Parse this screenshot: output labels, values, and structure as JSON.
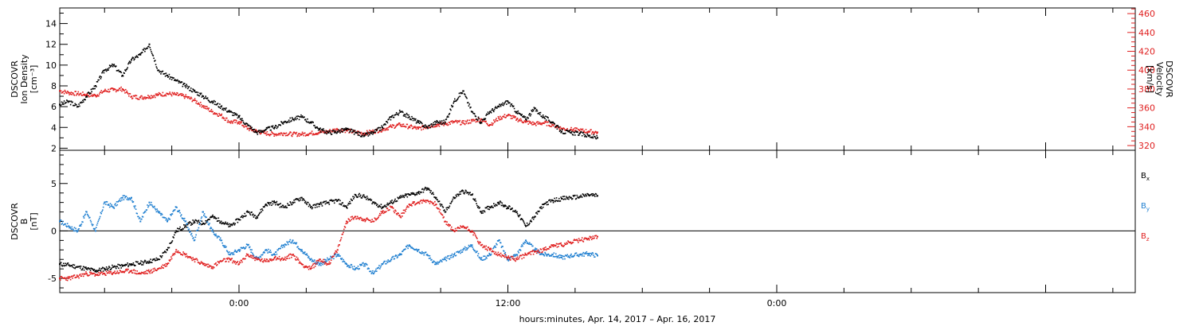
{
  "colors": {
    "black": "#000000",
    "red": "#e02020",
    "blue": "#1f7fd0"
  },
  "chart_data": [
    {
      "type": "scatter",
      "title": "",
      "ylabel_lines": [
        "DSCOVR",
        "Ion Density",
        "[cm⁻³]"
      ],
      "ylabel_right_lines": [
        "DSCOVR",
        "Velocity",
        "[km/s]"
      ],
      "ylim": [
        1.8,
        15.5
      ],
      "ylim_right": [
        315,
        466
      ],
      "yticks": [
        2,
        4,
        6,
        8,
        10,
        12,
        14
      ],
      "yticks_right": [
        320,
        340,
        360,
        380,
        400,
        420,
        440,
        460
      ],
      "x_unit": "hours since 2017-04-14 00:00",
      "xlim": [
        16,
        64
      ],
      "series": [
        {
          "color": "#000000",
          "axis": "left",
          "x": [
            16.0,
            16.4,
            16.8,
            17.2,
            17.6,
            18.0,
            18.4,
            18.8,
            19.2,
            19.6,
            20.0,
            20.4,
            20.8,
            21.2,
            21.6,
            22.0,
            22.4,
            22.8,
            23.2,
            23.6,
            24.0,
            24.4,
            24.8,
            25.2,
            25.6,
            26.0,
            26.4,
            26.8,
            27.2,
            27.6,
            28.0,
            28.4,
            28.8,
            29.2,
            29.6,
            30.0,
            30.4,
            30.8,
            31.2,
            31.6,
            32.0,
            32.4,
            32.8,
            33.2,
            33.6,
            34.0,
            34.4,
            34.8,
            35.2,
            35.6,
            36.0,
            36.4,
            36.8,
            37.2,
            37.6,
            38.0,
            38.4,
            38.8,
            39.2,
            39.6,
            40.0
          ],
          "y": [
            6.2,
            6.5,
            6.0,
            7.0,
            8.0,
            9.5,
            10.0,
            9.0,
            10.5,
            11.0,
            12.0,
            9.5,
            9.0,
            8.5,
            8.0,
            7.5,
            7.0,
            6.5,
            6.0,
            5.5,
            5.0,
            4.2,
            3.5,
            3.8,
            4.0,
            4.5,
            4.8,
            5.0,
            4.5,
            3.8,
            3.5,
            3.6,
            3.8,
            3.5,
            3.2,
            3.5,
            4.0,
            5.0,
            5.5,
            5.0,
            4.5,
            4.0,
            4.5,
            4.5,
            6.5,
            7.5,
            5.5,
            4.5,
            5.5,
            6.0,
            6.5,
            5.5,
            4.8,
            5.8,
            5.0,
            4.5,
            3.6,
            3.5,
            3.4,
            3.2,
            3.0
          ]
        },
        {
          "color": "#e02020",
          "axis": "right",
          "x": [
            16.0,
            16.4,
            16.8,
            17.2,
            17.6,
            18.0,
            18.4,
            18.8,
            19.2,
            19.6,
            20.0,
            20.4,
            20.8,
            21.2,
            21.6,
            22.0,
            22.4,
            22.8,
            23.2,
            23.6,
            24.0,
            24.4,
            24.8,
            25.2,
            25.6,
            26.0,
            26.4,
            26.8,
            27.2,
            27.6,
            28.0,
            28.4,
            28.8,
            29.2,
            29.6,
            30.0,
            30.4,
            30.8,
            31.2,
            31.6,
            32.0,
            32.4,
            32.8,
            33.2,
            33.6,
            34.0,
            34.4,
            34.8,
            35.2,
            35.6,
            36.0,
            36.4,
            36.8,
            37.2,
            37.6,
            38.0,
            38.4,
            38.8,
            39.2,
            39.6,
            40.0
          ],
          "y": [
            378,
            376,
            375,
            374,
            373,
            378,
            379,
            380,
            372,
            371,
            372,
            374,
            375,
            374,
            372,
            368,
            362,
            356,
            352,
            345,
            345,
            338,
            335,
            333,
            332,
            333,
            332,
            332,
            333,
            334,
            335,
            337,
            336,
            334,
            333,
            335,
            337,
            340,
            342,
            340,
            338,
            340,
            342,
            343,
            345,
            344,
            346,
            348,
            342,
            349,
            352,
            348,
            345,
            343,
            344,
            342,
            338,
            337,
            336,
            335,
            334
          ]
        }
      ]
    },
    {
      "type": "scatter",
      "title": "",
      "ylabel_lines": [
        "DSCOVR",
        "B",
        "[nT]"
      ],
      "ylim": [
        -6.5,
        8.5
      ],
      "yticks": [
        -5,
        0,
        5
      ],
      "x_unit": "hours since 2017-04-14 00:00",
      "xlim": [
        16,
        64
      ],
      "zero_line": true,
      "legend": [
        "Bx",
        "By",
        "Bz"
      ],
      "series": [
        {
          "name": "Bx",
          "color": "#000000",
          "x": [
            16.0,
            16.4,
            16.8,
            17.2,
            17.6,
            18.0,
            18.4,
            18.8,
            19.2,
            19.6,
            20.0,
            20.4,
            20.8,
            21.2,
            21.6,
            22.0,
            22.4,
            22.8,
            23.2,
            23.6,
            24.0,
            24.4,
            24.8,
            25.2,
            25.6,
            26.0,
            26.4,
            26.8,
            27.2,
            27.6,
            28.0,
            28.4,
            28.8,
            29.2,
            29.6,
            30.0,
            30.4,
            30.8,
            31.2,
            31.6,
            32.0,
            32.4,
            32.8,
            33.2,
            33.6,
            34.0,
            34.4,
            34.8,
            35.2,
            35.6,
            36.0,
            36.4,
            36.8,
            37.2,
            37.6,
            38.0,
            38.4,
            38.8,
            39.2,
            39.6,
            40.0
          ],
          "y": [
            -3.5,
            -3.6,
            -3.8,
            -4.0,
            -4.2,
            -4.0,
            -3.8,
            -3.7,
            -3.5,
            -3.4,
            -3.2,
            -3.0,
            -2.0,
            0.0,
            0.5,
            1.0,
            0.8,
            1.5,
            1.0,
            0.5,
            1.2,
            2.0,
            1.5,
            2.8,
            3.0,
            2.5,
            3.0,
            3.5,
            2.5,
            2.8,
            3.0,
            3.2,
            2.5,
            3.8,
            3.6,
            3.0,
            2.5,
            3.0,
            3.5,
            3.8,
            4.0,
            4.5,
            3.5,
            2.0,
            3.5,
            4.2,
            3.8,
            2.0,
            2.5,
            3.0,
            2.5,
            2.0,
            0.5,
            1.5,
            2.8,
            3.2,
            3.4,
            3.5,
            3.6,
            3.8,
            3.7
          ]
        },
        {
          "name": "By",
          "color": "#1f7fd0",
          "x": [
            16.0,
            16.4,
            16.8,
            17.2,
            17.6,
            18.0,
            18.4,
            18.8,
            19.2,
            19.6,
            20.0,
            20.4,
            20.8,
            21.2,
            21.6,
            22.0,
            22.4,
            22.8,
            23.2,
            23.6,
            24.0,
            24.4,
            24.8,
            25.2,
            25.6,
            26.0,
            26.4,
            26.8,
            27.2,
            27.6,
            28.0,
            28.4,
            28.8,
            29.2,
            29.6,
            30.0,
            30.4,
            30.8,
            31.2,
            31.6,
            32.0,
            32.4,
            32.8,
            33.2,
            33.6,
            34.0,
            34.4,
            34.8,
            35.2,
            35.6,
            36.0,
            36.4,
            36.8,
            37.2,
            37.6,
            38.0,
            38.4,
            38.8,
            39.2,
            39.6,
            40.0
          ],
          "y": [
            1.0,
            0.5,
            0.0,
            2.0,
            0.0,
            3.0,
            2.5,
            3.5,
            3.5,
            1.0,
            3.0,
            2.0,
            1.0,
            2.5,
            1.0,
            -1.0,
            2.0,
            0.0,
            -1.0,
            -2.5,
            -2.0,
            -1.5,
            -3.0,
            -2.0,
            -2.5,
            -1.5,
            -1.0,
            -2.0,
            -3.0,
            -3.5,
            -3.0,
            -2.5,
            -3.5,
            -4.0,
            -3.5,
            -4.5,
            -3.5,
            -3.0,
            -2.5,
            -1.5,
            -2.0,
            -2.5,
            -3.5,
            -3.0,
            -2.5,
            -2.0,
            -1.5,
            -3.0,
            -2.5,
            -1.0,
            -3.0,
            -2.5,
            -1.0,
            -2.0,
            -2.5,
            -2.5,
            -2.8,
            -2.6,
            -2.5,
            -2.4,
            -2.6
          ]
        },
        {
          "name": "Bz",
          "color": "#e02020",
          "x": [
            16.0,
            16.4,
            16.8,
            17.2,
            17.6,
            18.0,
            18.4,
            18.8,
            19.2,
            19.6,
            20.0,
            20.4,
            20.8,
            21.2,
            21.6,
            22.0,
            22.4,
            22.8,
            23.2,
            23.6,
            24.0,
            24.4,
            24.8,
            25.2,
            25.6,
            26.0,
            26.4,
            26.8,
            27.2,
            27.6,
            28.0,
            28.4,
            28.8,
            29.2,
            29.6,
            30.0,
            30.4,
            30.8,
            31.2,
            31.6,
            32.0,
            32.4,
            32.8,
            33.2,
            33.6,
            34.0,
            34.4,
            34.8,
            35.2,
            35.6,
            36.0,
            36.4,
            36.8,
            37.2,
            37.6,
            38.0,
            38.4,
            38.8,
            39.2,
            39.6,
            40.0
          ],
          "y": [
            -5.0,
            -5.0,
            -4.8,
            -4.5,
            -4.6,
            -4.5,
            -4.4,
            -4.3,
            -4.2,
            -4.5,
            -4.3,
            -4.0,
            -3.5,
            -2.0,
            -2.5,
            -3.0,
            -3.5,
            -3.8,
            -3.2,
            -3.0,
            -3.5,
            -2.5,
            -3.0,
            -3.2,
            -2.8,
            -3.0,
            -2.5,
            -3.5,
            -4.0,
            -3.0,
            -3.5,
            -2.0,
            1.0,
            1.5,
            1.2,
            1.0,
            2.0,
            2.5,
            1.5,
            2.8,
            3.0,
            3.2,
            2.8,
            1.0,
            0.0,
            0.5,
            0.0,
            -1.5,
            -2.0,
            -2.5,
            -2.8,
            -3.0,
            -2.5,
            -2.2,
            -2.0,
            -1.5,
            -1.5,
            -1.2,
            -1.0,
            -0.8,
            -0.6
          ]
        }
      ]
    }
  ],
  "xaxis": {
    "tick_labels": [
      {
        "t": 24,
        "label": "0:00"
      },
      {
        "t": 36,
        "label": "12:00"
      },
      {
        "t": 48,
        "label": "0:00"
      }
    ],
    "xlabel": "hours:minutes, Apr. 14, 2017 – Apr. 16, 2017"
  }
}
